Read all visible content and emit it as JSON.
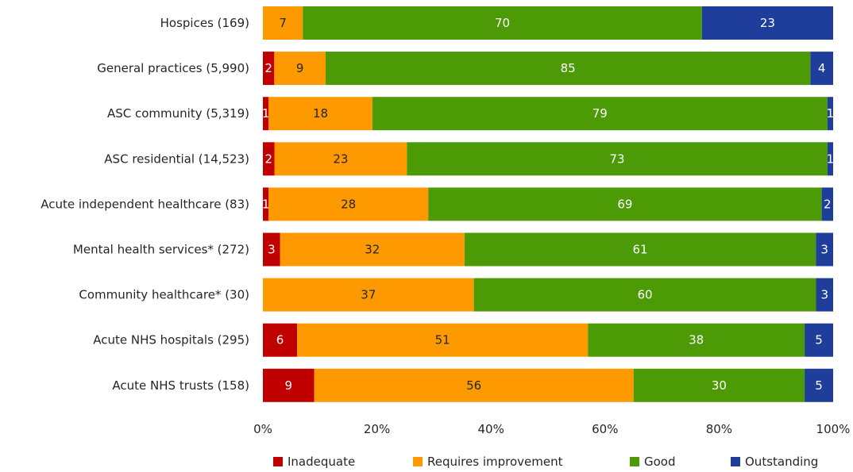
{
  "chart_data": {
    "type": "bar",
    "orientation": "horizontal",
    "stacked": "percent",
    "categories": [
      "Hospices (169)",
      "General practices (5,990)",
      "ASC community (5,319)",
      "ASC residential (14,523)",
      "Acute independent healthcare (83)",
      "Mental health services* (272)",
      "Community healthcare* (30)",
      "Acute NHS hospitals (295)",
      "Acute NHS trusts (158)"
    ],
    "series": [
      {
        "name": "Inadequate",
        "color": "#c00000",
        "values": [
          0,
          2,
          1,
          2,
          1,
          3,
          0,
          6,
          9
        ]
      },
      {
        "name": "Requires improvement",
        "color": "#ff9900",
        "values": [
          7,
          9,
          18,
          23,
          28,
          32,
          37,
          51,
          56
        ]
      },
      {
        "name": "Good",
        "color": "#4b9a06",
        "values": [
          70,
          85,
          79,
          73,
          69,
          61,
          60,
          38,
          30
        ]
      },
      {
        "name": "Outstanding",
        "color": "#1f3e9c",
        "values": [
          23,
          4,
          1,
          1,
          2,
          3,
          3,
          5,
          5
        ]
      }
    ],
    "xlim": [
      0,
      100
    ],
    "x_ticks": [
      "0%",
      "20%",
      "40%",
      "60%",
      "80%",
      "100%"
    ],
    "legend_position": "bottom",
    "grid": false
  }
}
